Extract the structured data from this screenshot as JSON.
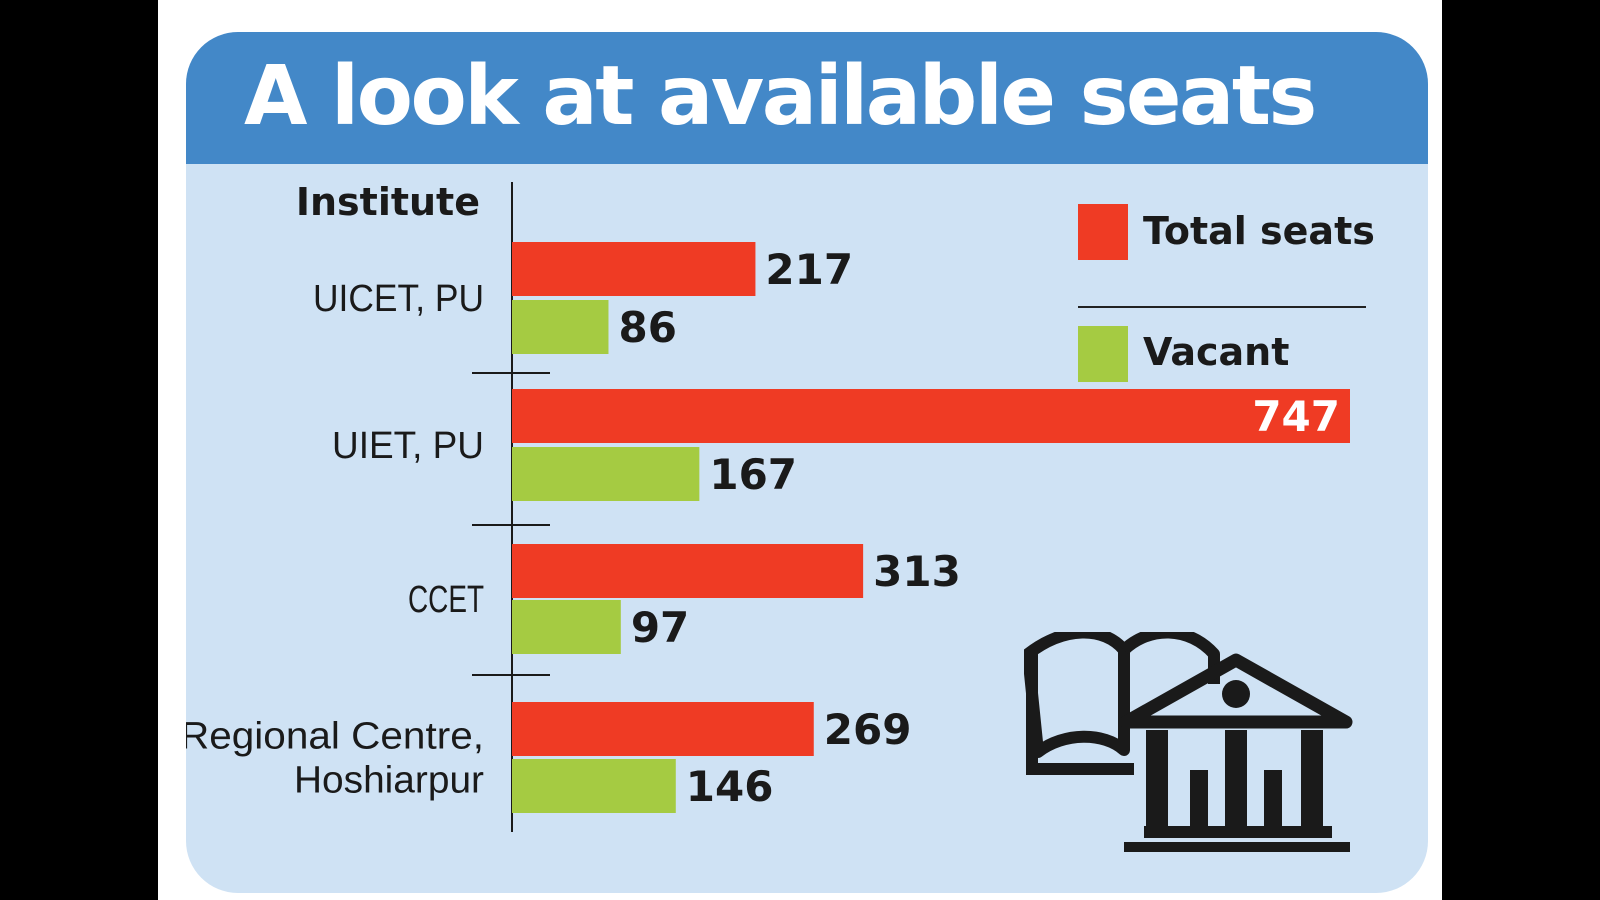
{
  "title": "A look at available seats",
  "colors": {
    "background": "#000000",
    "card": "#cfe2f4",
    "title_band": "#4388c8",
    "total": "#ef3b24",
    "vacant": "#a5cb42",
    "text": "#1a1a1a"
  },
  "legend": {
    "total_label": "Total seats",
    "vacant_label": "Vacant"
  },
  "icon": "library-building-icon",
  "chart_data": {
    "type": "bar",
    "orientation": "horizontal",
    "category_axis_label": "Institute",
    "categories": [
      [
        "UICET, PU"
      ],
      [
        "UIET, PU"
      ],
      [
        "CCET"
      ],
      [
        "Regional Centre,",
        "Hoshiarpur"
      ]
    ],
    "series": [
      {
        "name": "Total seats",
        "values": [
          217,
          747,
          313,
          269
        ],
        "color": "#ef3b24"
      },
      {
        "name": "Vacant",
        "values": [
          86,
          167,
          97,
          146
        ],
        "color": "#a5cb42"
      }
    ],
    "xlim": [
      0,
      747
    ],
    "grid": false,
    "legend_position": "top-right",
    "data_labels": true
  }
}
